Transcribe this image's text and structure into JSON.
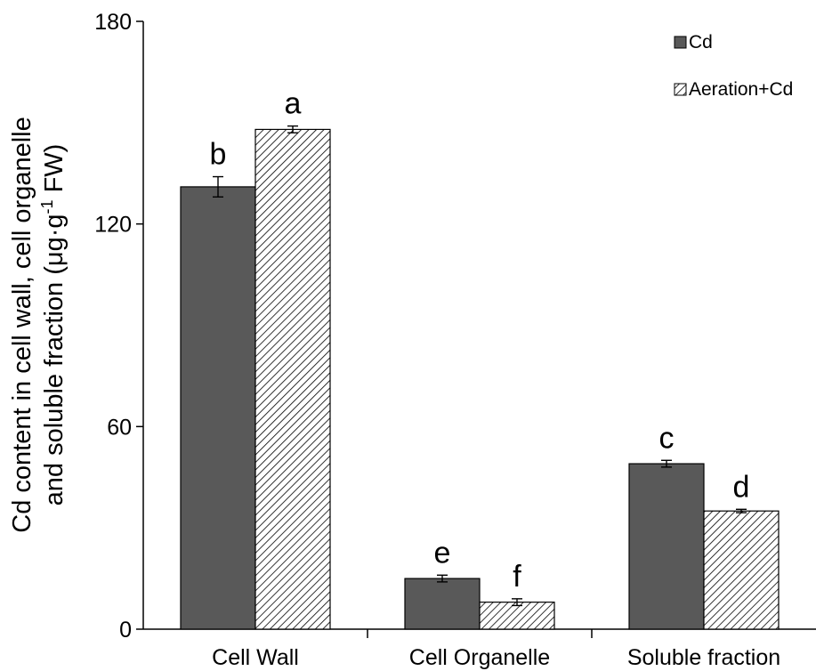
{
  "chart_data": {
    "type": "bar",
    "title": "",
    "xlabel": "",
    "ylabel_line1": "Cd content in cell wall, cell organelle",
    "ylabel_line2_prefix": "and soluble fraction (μg·g",
    "ylabel_sup": "-1",
    "ylabel_line2_suffix": " FW)",
    "ylim": [
      0,
      180
    ],
    "yticks": [
      "0",
      "60",
      "120",
      "180"
    ],
    "ytick_values": [
      0,
      60,
      120,
      180
    ],
    "categories": [
      "Cell Wall",
      "Cell Organelle",
      "Soluble fraction"
    ],
    "series": [
      {
        "name": "Cd",
        "color": "#595959",
        "pattern": "solid",
        "values": [
          131,
          15,
          49
        ],
        "errors": [
          3,
          1,
          1
        ],
        "letters": [
          "b",
          "e",
          "c"
        ]
      },
      {
        "name": "Aeration+Cd",
        "color": "#ffffff",
        "pattern": "diagonal-hatch",
        "values": [
          148,
          8,
          35
        ],
        "errors": [
          1,
          1,
          0.5
        ],
        "letters": [
          "a",
          "f",
          "d"
        ]
      }
    ],
    "legend_position": "top-right",
    "grid": false
  }
}
